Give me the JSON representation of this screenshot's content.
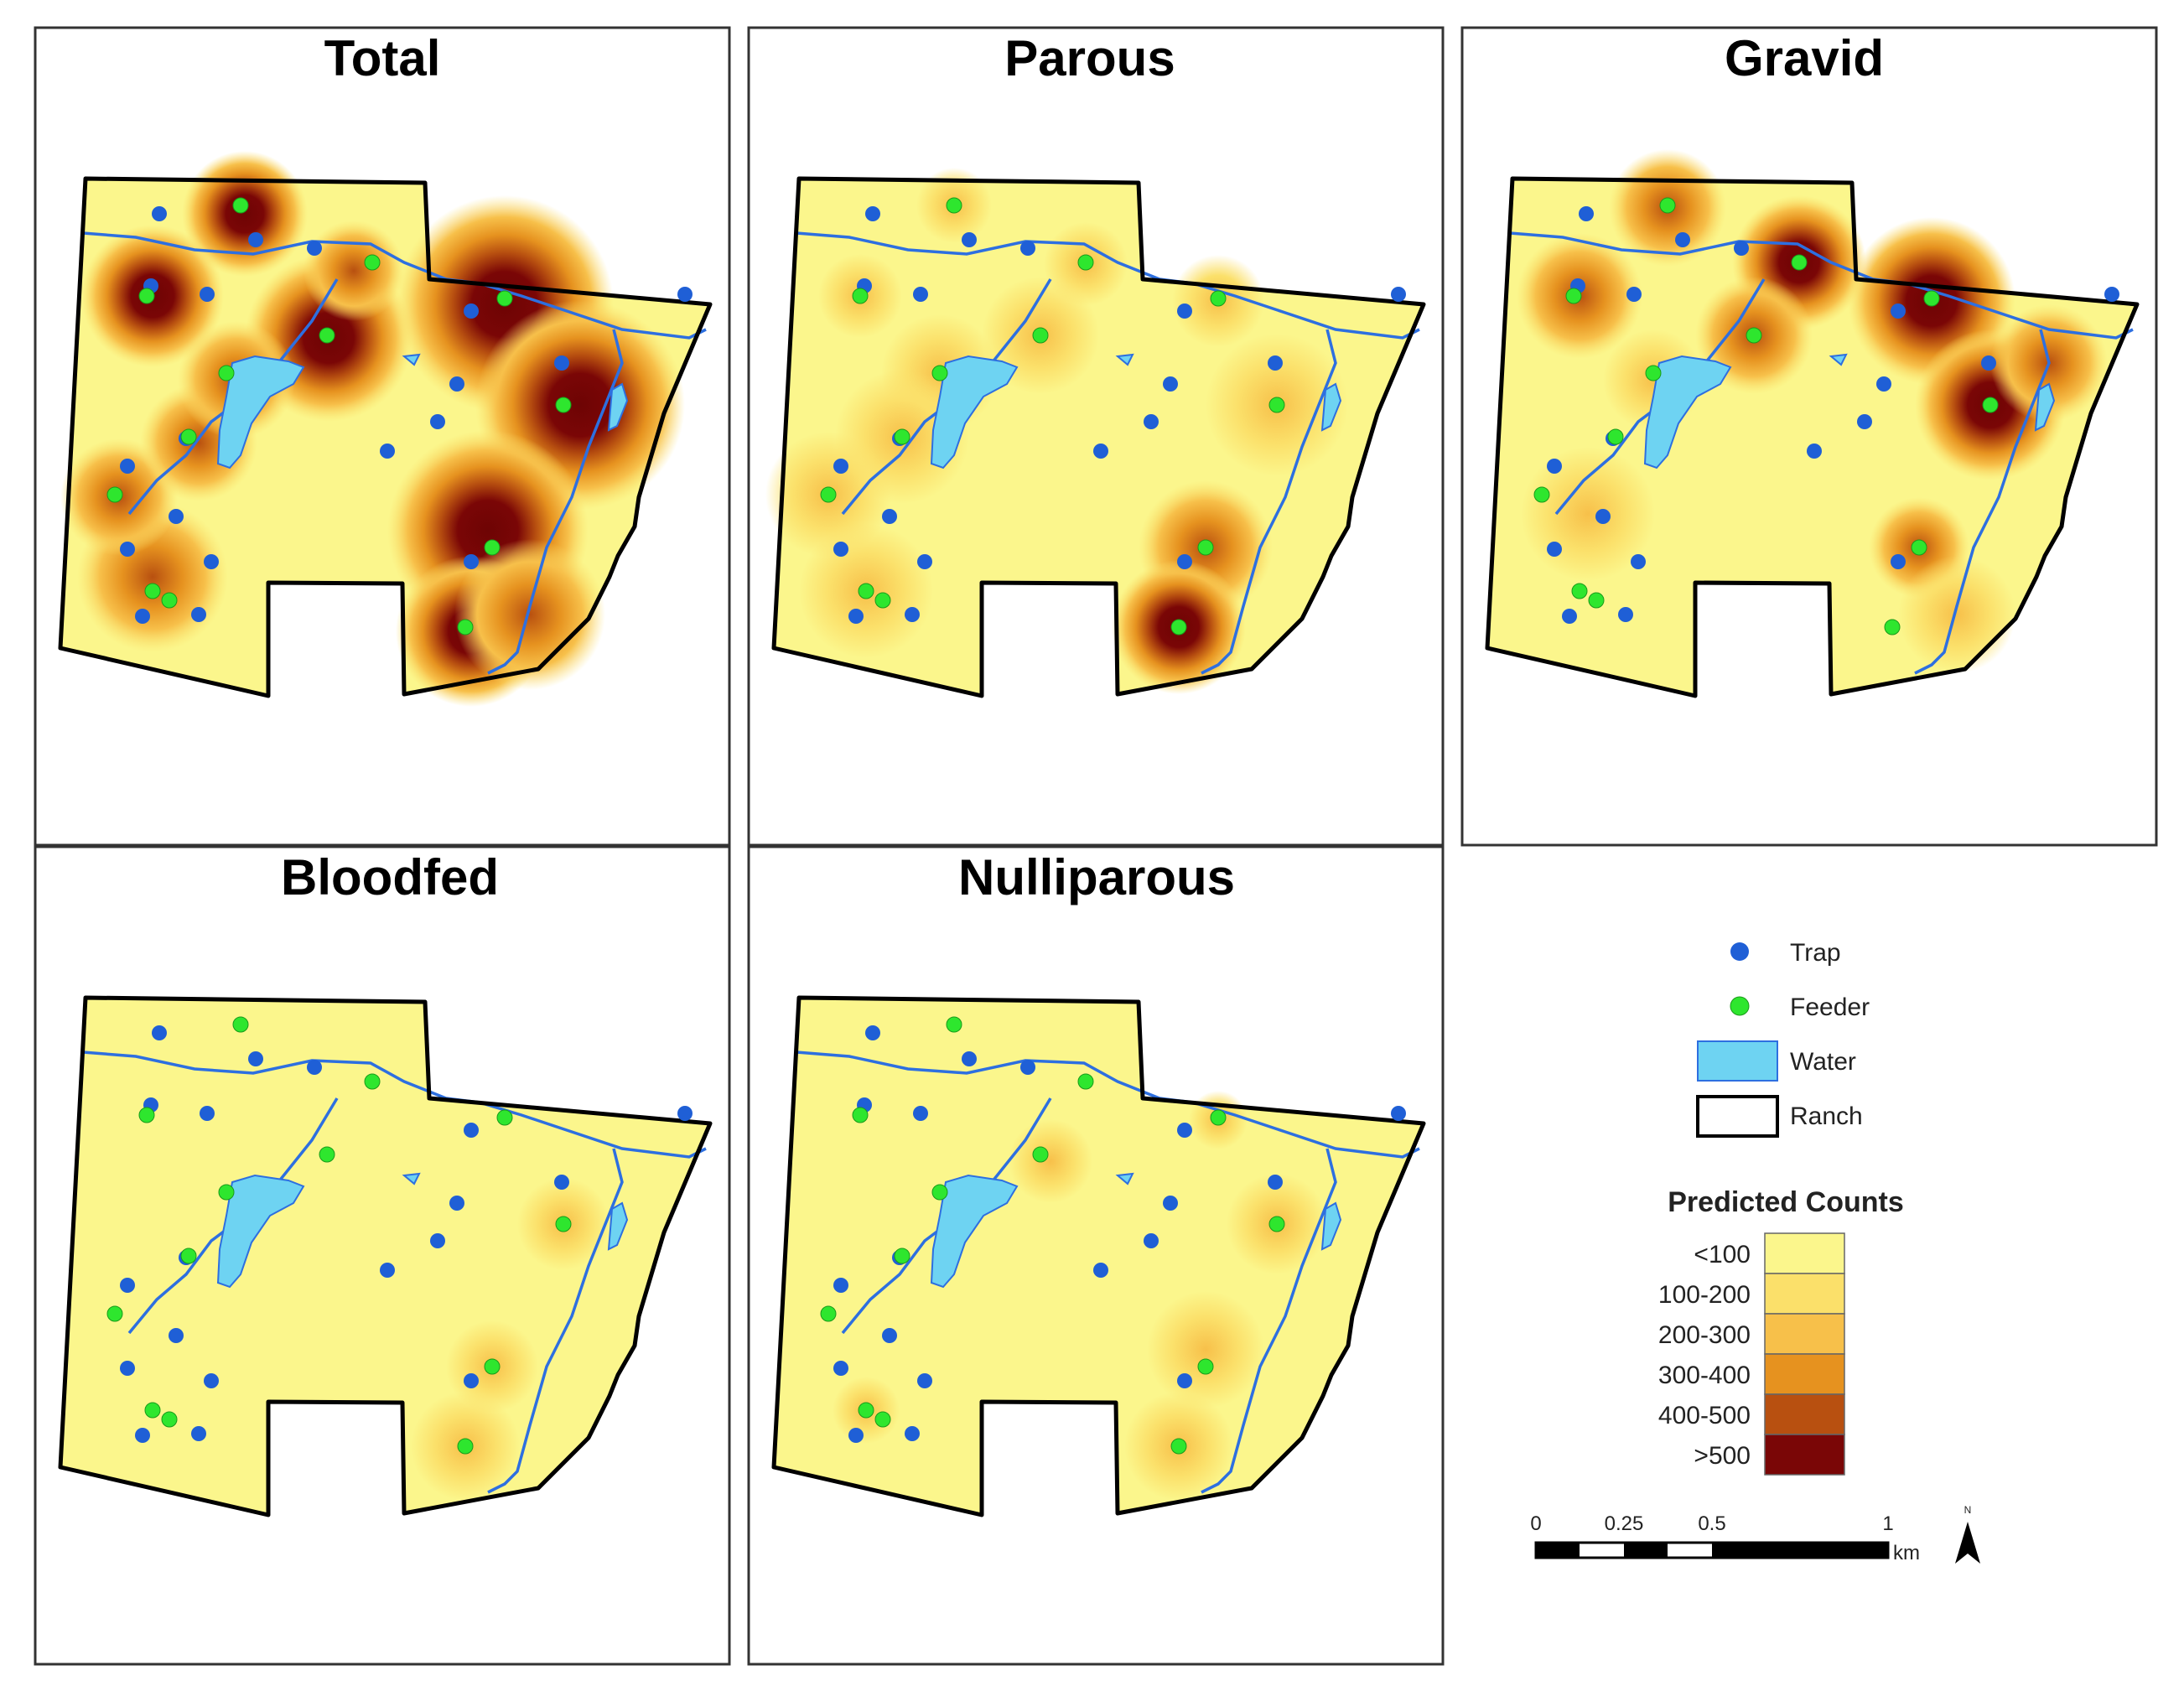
{
  "panels": [
    {
      "title": "Total"
    },
    {
      "title": "Parous"
    },
    {
      "title": "Gravid"
    },
    {
      "title": "Bloodfed"
    },
    {
      "title": "Nulliparous"
    }
  ],
  "legend": {
    "symbols": [
      {
        "label": "Trap",
        "icon": "blue-dot-icon",
        "color": "#1f5fd6"
      },
      {
        "label": "Feeder",
        "icon": "green-dot-icon",
        "color": "#2ee62e"
      },
      {
        "label": "Water",
        "icon": "water-swatch-icon",
        "color": "#6ed3f2"
      },
      {
        "label": "Ranch",
        "icon": "ranch-outline-icon",
        "color": "#000000"
      }
    ],
    "heading": "Predicted Counts",
    "classes": [
      {
        "label": "<100",
        "color": "#fbf68c"
      },
      {
        "label": "100-200",
        "color": "#fbe06a"
      },
      {
        "label": "200-300",
        "color": "#f7c04a"
      },
      {
        "label": "300-400",
        "color": "#e6921f"
      },
      {
        "label": "400-500",
        "color": "#b85010"
      },
      {
        "label": ">500",
        "color": "#7a0606"
      }
    ]
  },
  "scale_bar": {
    "ticks": [
      "0",
      "0.25",
      "0.5",
      "1"
    ],
    "unit": "km"
  },
  "north_arrow": {
    "label": "N"
  }
}
